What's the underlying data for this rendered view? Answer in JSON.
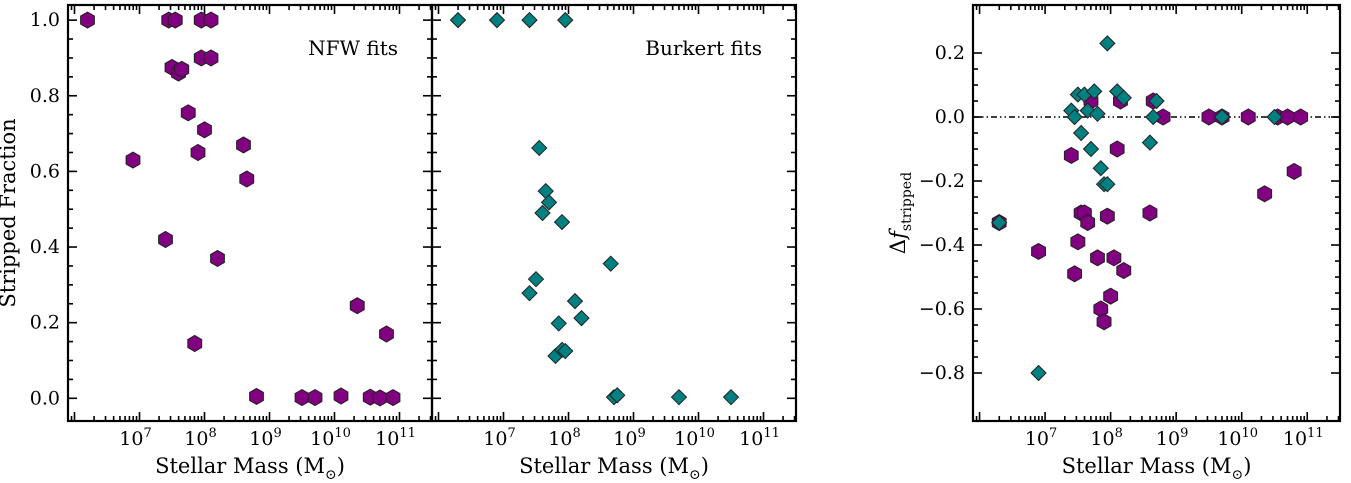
{
  "chart_data": [
    {
      "type": "scatter",
      "panel": "nfw",
      "annotation": "NFW fits",
      "xlabel": "Stellar Mass (M",
      "xlabel_sub": "⊙",
      "xlabel_close": ")",
      "ylabel": "Stripped Fraction",
      "xscale": "log",
      "xlim_log10": [
        5.9,
        11.5
      ],
      "ylim": [
        -0.06,
        1.04
      ],
      "x_ticks": [
        "10^7",
        "10^8",
        "10^9",
        "10^10",
        "10^11"
      ],
      "y_ticks": [
        "0.0",
        "0.2",
        "0.4",
        "0.6",
        "0.8",
        "1.0"
      ],
      "series": [
        {
          "marker": "hexagon",
          "color": "#800080",
          "log10_x": [
            6.2,
            6.9,
            7.4,
            7.45,
            7.5,
            7.55,
            7.6,
            7.65,
            7.75,
            7.85,
            7.9,
            7.95,
            7.95,
            8.0,
            8.1,
            8.1,
            8.2,
            8.6,
            8.65,
            8.8,
            9.5,
            9.7,
            10.1,
            10.35,
            10.55,
            10.7,
            10.8,
            10.9
          ],
          "y": [
            1.0,
            0.63,
            0.42,
            1.0,
            0.875,
            1.0,
            0.86,
            0.87,
            0.755,
            0.145,
            0.65,
            1.0,
            0.9,
            0.71,
            0.9,
            1.0,
            0.37,
            0.67,
            0.58,
            0.005,
            0.002,
            0.002,
            0.006,
            0.245,
            0.003,
            0.001,
            0.17,
            0.002
          ]
        }
      ]
    },
    {
      "type": "scatter",
      "panel": "burkert",
      "annotation": "Burkert fits",
      "xlabel": "Stellar Mass (M",
      "xlabel_sub": "⊙",
      "xlabel_close": ")",
      "xscale": "log",
      "xlim_log10": [
        5.9,
        11.5
      ],
      "ylim": [
        -0.06,
        1.04
      ],
      "x_ticks": [
        "10^7",
        "10^8",
        "10^9",
        "10^10",
        "10^11"
      ],
      "series": [
        {
          "marker": "diamond",
          "color": "#008080",
          "log10_x": [
            6.3,
            6.9,
            7.4,
            7.4,
            7.5,
            7.55,
            7.6,
            7.65,
            7.7,
            7.8,
            7.85,
            7.9,
            7.9,
            7.95,
            7.95,
            8.1,
            8.2,
            8.65,
            8.7,
            8.75,
            9.7,
            10.5
          ],
          "y": [
            1.0,
            1.0,
            1.0,
            0.278,
            0.315,
            0.662,
            0.49,
            0.548,
            0.518,
            0.112,
            0.198,
            0.466,
            0.128,
            0.125,
            1.0,
            0.257,
            0.212,
            0.356,
            0.003,
            0.008,
            0.003,
            0.003
          ]
        }
      ]
    },
    {
      "type": "scatter",
      "panel": "difference",
      "xlabel": "Stellar Mass (M",
      "xlabel_sub": "⊙",
      "xlabel_close": ")",
      "ylabel_prefix": "Δ",
      "ylabel_main": "f",
      "ylabel_sub": "stripped",
      "xscale": "log",
      "xlim_log10": [
        5.9,
        11.5
      ],
      "ylim": [
        -0.95,
        0.35
      ],
      "x_ticks": [
        "10^7",
        "10^8",
        "10^9",
        "10^10",
        "10^11"
      ],
      "y_ticks": [
        "−0.8",
        "−0.6",
        "−0.4",
        "−0.2",
        "0.0",
        "0.2"
      ],
      "reference_line": 0.0,
      "series": [
        {
          "marker": "hexagon",
          "color": "#800080",
          "log10_x": [
            6.3,
            6.9,
            7.4,
            7.45,
            7.5,
            7.55,
            7.6,
            7.65,
            7.7,
            7.8,
            7.85,
            7.9,
            7.95,
            8.0,
            8.05,
            8.1,
            8.15,
            8.2,
            8.6,
            8.65,
            8.8,
            9.5,
            9.7,
            10.1,
            10.35,
            10.55,
            10.7,
            10.8,
            10.9
          ],
          "y": [
            -0.33,
            -0.42,
            -0.12,
            -0.49,
            -0.39,
            -0.3,
            -0.3,
            -0.33,
            0.05,
            -0.44,
            -0.6,
            -0.64,
            -0.31,
            -0.56,
            -0.44,
            -0.1,
            0.05,
            -0.48,
            -0.3,
            0.05,
            0.0,
            0.0,
            0.0,
            0.0,
            -0.24,
            0.0,
            0.0,
            -0.17,
            0.0
          ]
        },
        {
          "marker": "diamond",
          "color": "#008080",
          "log10_x": [
            6.3,
            6.9,
            7.4,
            7.45,
            7.5,
            7.55,
            7.6,
            7.65,
            7.7,
            7.75,
            7.8,
            7.85,
            7.9,
            7.95,
            7.95,
            8.1,
            8.2,
            8.6,
            8.65,
            8.7,
            9.7,
            10.5
          ],
          "y": [
            -0.33,
            -0.8,
            0.02,
            0.0,
            0.07,
            -0.05,
            0.07,
            0.02,
            -0.1,
            0.08,
            0.01,
            -0.16,
            -0.21,
            0.23,
            -0.21,
            0.08,
            0.06,
            -0.08,
            0.0,
            0.05,
            0.0,
            0.0
          ]
        }
      ]
    }
  ]
}
